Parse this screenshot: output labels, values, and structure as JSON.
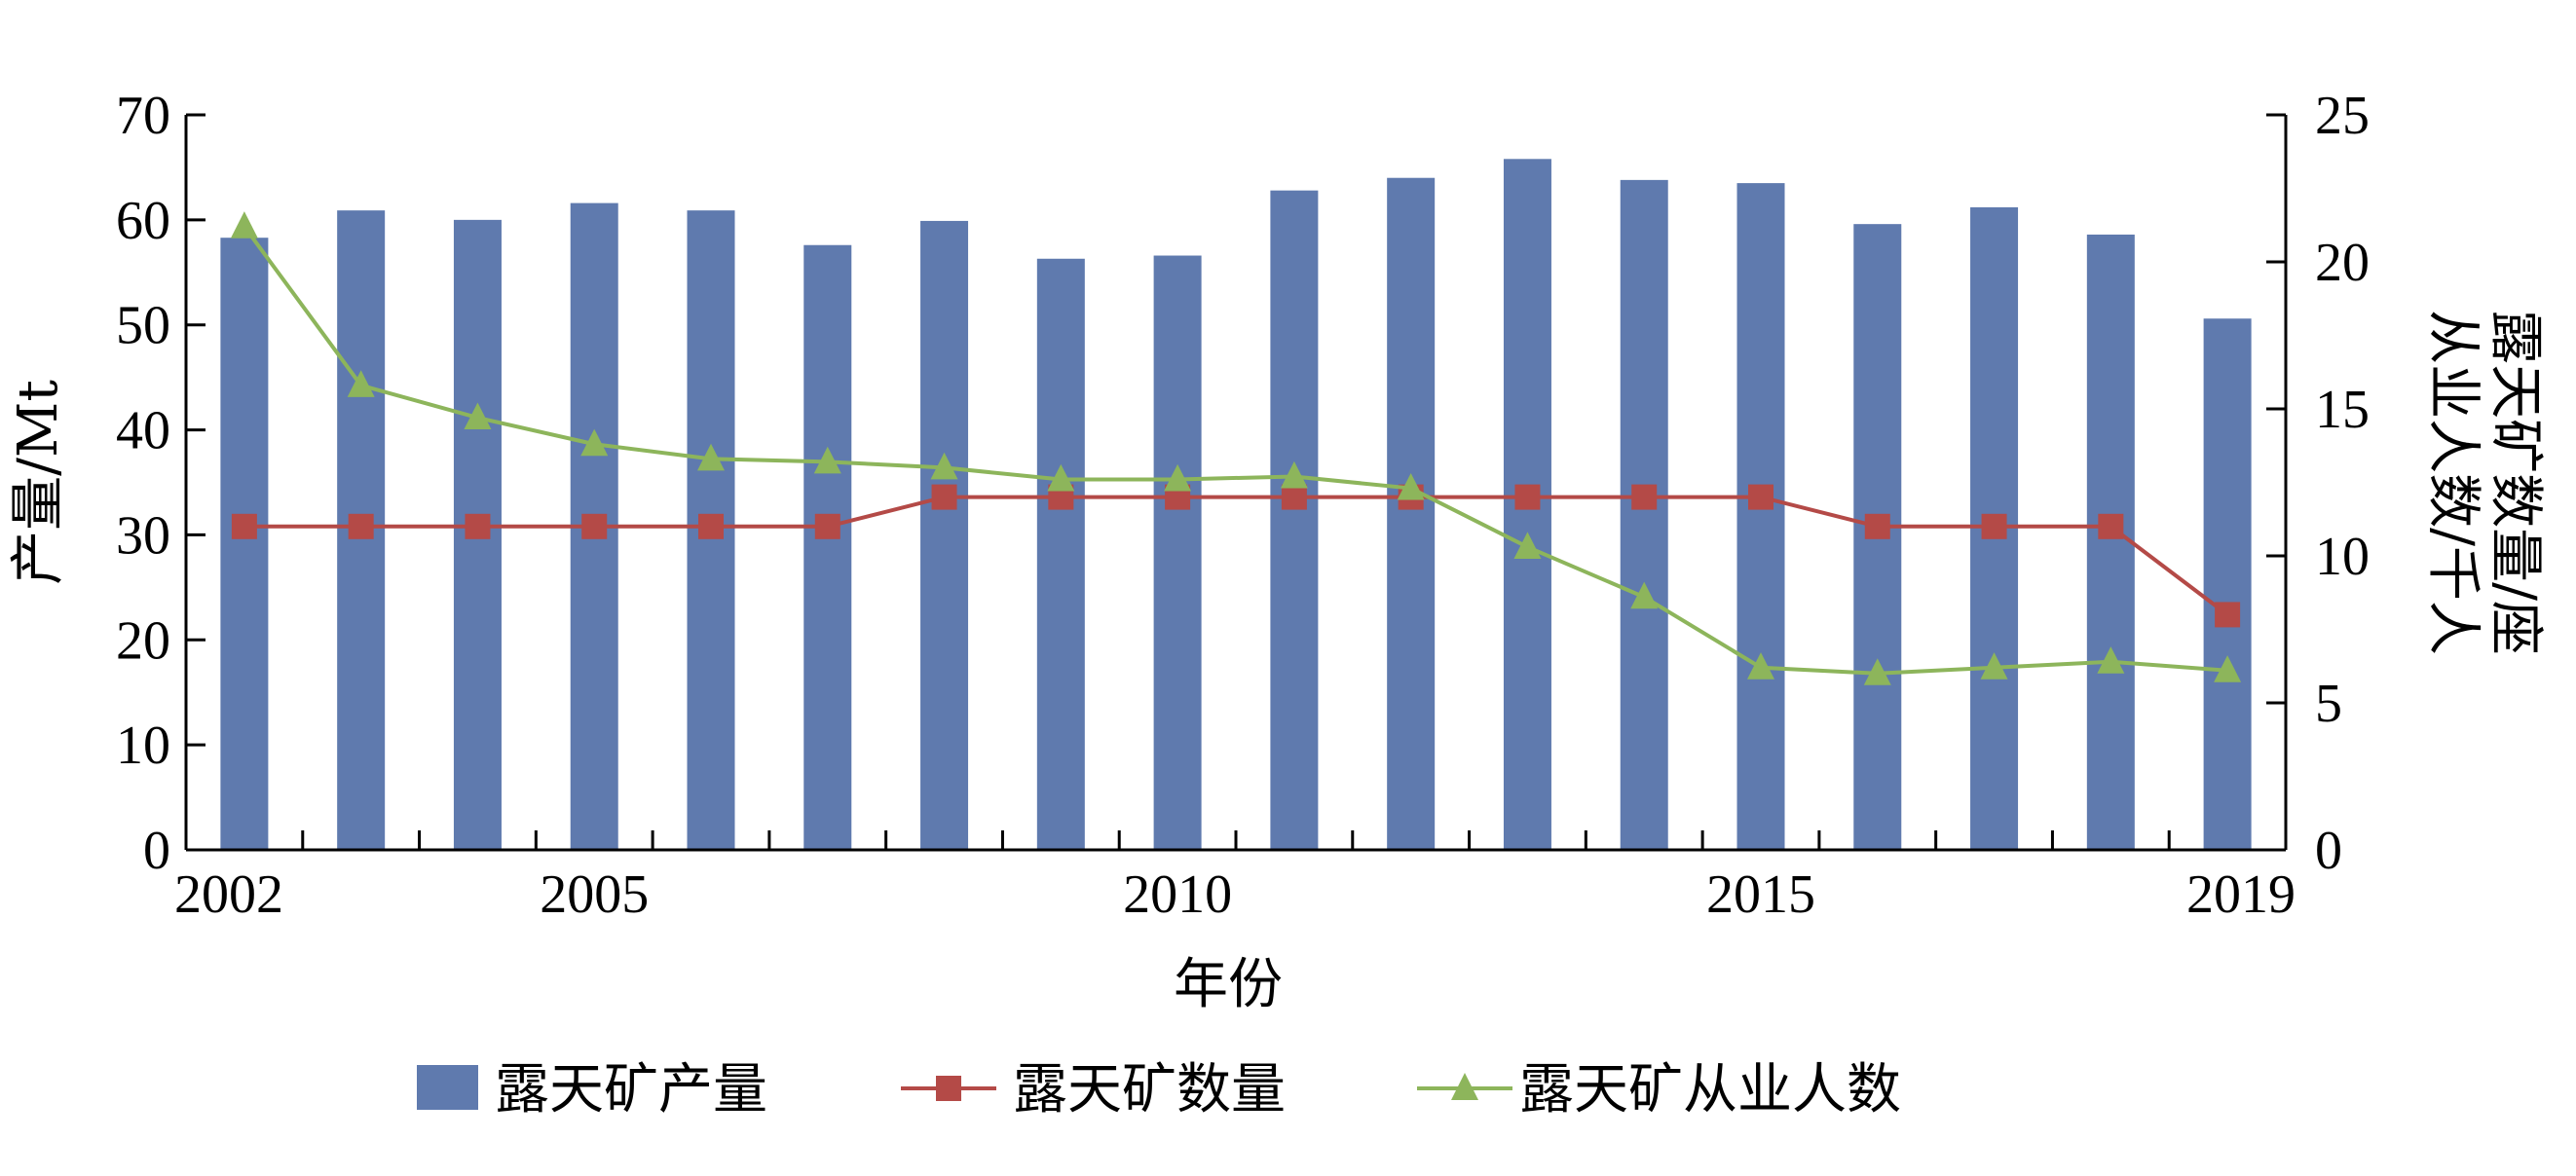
{
  "chart_data": {
    "type": "bar",
    "x": [
      2002,
      2003,
      2004,
      2005,
      2006,
      2007,
      2008,
      2009,
      2010,
      2011,
      2012,
      2013,
      2014,
      2015,
      2016,
      2017,
      2018,
      2019
    ],
    "x_tick_labels": [
      "2002",
      "2005",
      "2010",
      "2015",
      "2019"
    ],
    "x_tick_values": [
      2002,
      2005,
      2010,
      2015,
      2019
    ],
    "xlabel": "年份",
    "ylabel_left": "产量/Mt",
    "ylabel_right_line1": "从业人数/千人",
    "ylabel_right_line2": "露天矿数量/座",
    "ylim_left": [
      0,
      70
    ],
    "ylim_right": [
      0,
      25
    ],
    "yticks_left": [
      0,
      10,
      20,
      30,
      40,
      50,
      60,
      70
    ],
    "yticks_right": [
      0,
      5,
      10,
      15,
      20,
      25
    ],
    "legend_position": "bottom",
    "series": [
      {
        "name": "露天矿产量",
        "kind": "bar",
        "axis": "left",
        "color": "#5f7aae",
        "values": [
          58.3,
          60.9,
          60.0,
          61.6,
          60.9,
          57.6,
          59.9,
          56.3,
          56.6,
          62.8,
          64.0,
          65.8,
          63.8,
          63.5,
          59.6,
          61.2,
          58.6,
          50.6
        ]
      },
      {
        "name": "露天矿数量",
        "kind": "line",
        "axis": "right",
        "marker": "square",
        "color": "#b44a47",
        "values": [
          11,
          11,
          11,
          11,
          11,
          11,
          12,
          12,
          12,
          12,
          12,
          12,
          12,
          12,
          11,
          11,
          11,
          8
        ]
      },
      {
        "name": "露天矿从业人数",
        "kind": "line",
        "axis": "right",
        "marker": "triangle",
        "color": "#8db55b",
        "values": [
          21.2,
          15.8,
          14.7,
          13.8,
          13.3,
          13.2,
          13.0,
          12.6,
          12.6,
          12.7,
          12.3,
          10.3,
          8.6,
          6.2,
          6.0,
          6.2,
          6.4,
          6.1
        ]
      }
    ]
  }
}
